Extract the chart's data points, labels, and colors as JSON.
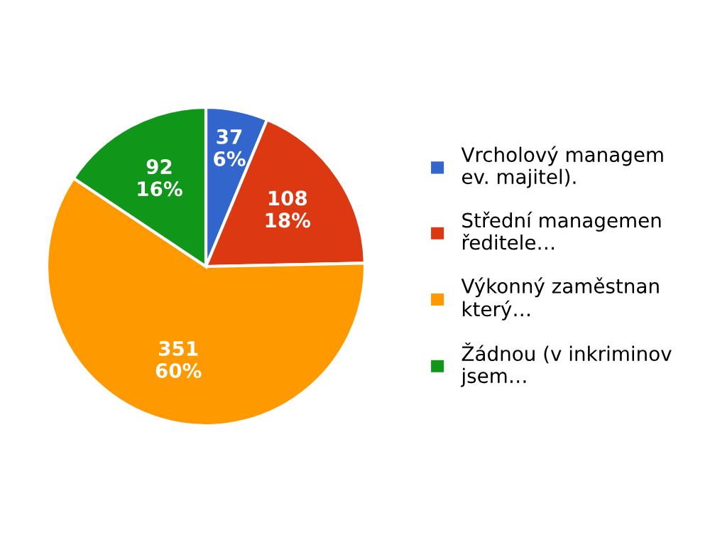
{
  "chart_data": {
    "type": "pie",
    "categories": [
      "Vrcholový managem\nev. majitel).",
      "Střední managemen\nředitele…",
      "Výkonný zaměstnan\nkterý…",
      "Žádnou (v inkriminov\njsem…"
    ],
    "values": [
      37,
      108,
      351,
      92
    ],
    "colors": [
      "#3366cc",
      "#dc3912",
      "#ff9900",
      "#109618"
    ],
    "value_labels": [
      "37\n6%",
      "108\n18%",
      "351\n60%",
      "92\n16%"
    ],
    "legend": "right"
  }
}
